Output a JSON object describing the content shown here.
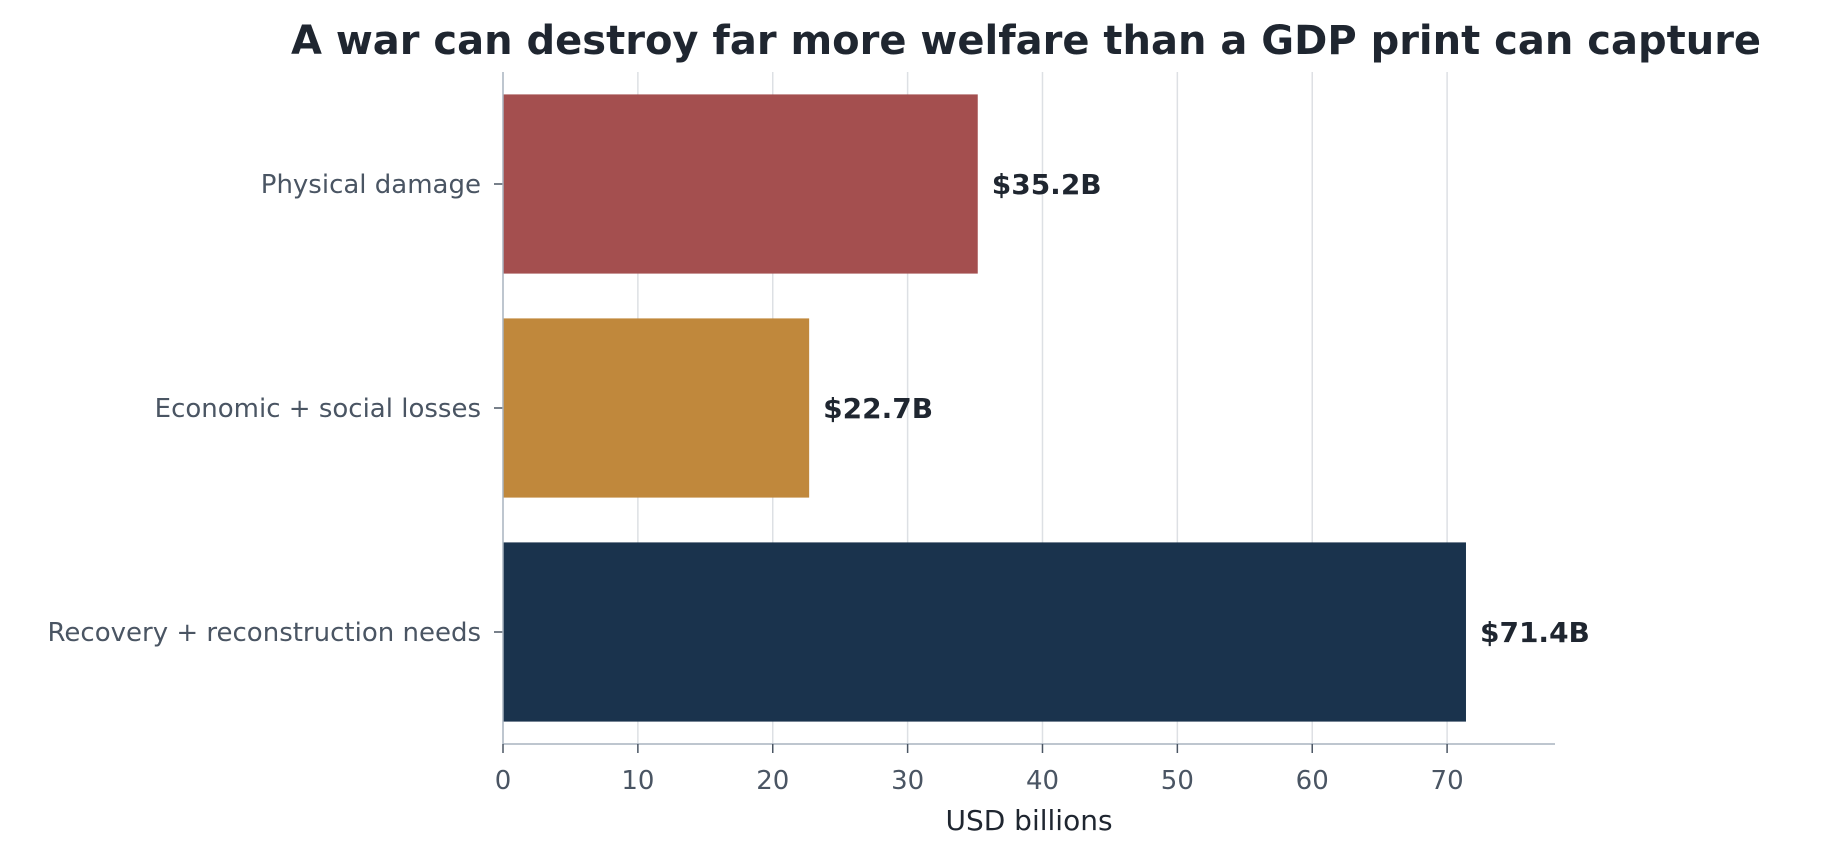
{
  "chart_data": {
    "type": "bar",
    "orientation": "horizontal",
    "title": "A war can destroy far more welfare than a GDP print can capture",
    "xlabel": "USD billions",
    "ylabel": "",
    "categories": [
      "Physical damage",
      "Economic + social losses",
      "Recovery + reconstruction needs"
    ],
    "values": [
      35.2,
      22.7,
      71.4
    ],
    "value_labels": [
      "$35.2B",
      "$22.7B",
      "$71.4B"
    ],
    "colors": [
      "#a44f4f",
      "#c0883c",
      "#1a334d"
    ],
    "xlim": [
      0,
      78
    ],
    "xticks": [
      0,
      10,
      20,
      30,
      40,
      50,
      60,
      70
    ],
    "grid": "vertical",
    "legend": "none"
  },
  "style": {
    "grid_color": "#dde0e4",
    "axis_color": "#a8b3bf",
    "text_color": "#1f2630",
    "muted_text_color": "#4a5563"
  }
}
